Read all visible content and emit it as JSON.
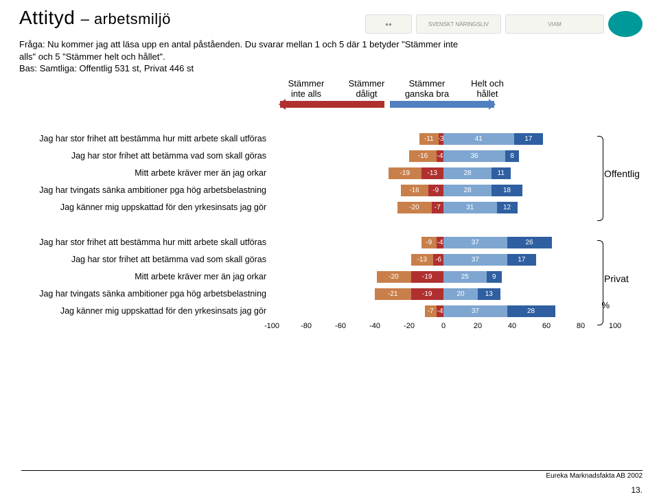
{
  "title_main": "Attityd",
  "title_sub": "– arbetsmiljö",
  "question_line1": "Fråga: Nu kommer jag att läsa upp en antal påståenden. Du svarar mellan 1 och 5 där 1 betyder \"Stämmer inte alls\" och 5 \"Stämmer helt och hållet\".",
  "base_line": "Bas: Samtliga: Offentlig 531 st, Privat 446 st",
  "legend": [
    "Stämmer inte alls",
    "Stämmer dåligt",
    "Stämmer ganska bra",
    "Helt och hållet"
  ],
  "axis": {
    "min": -100,
    "max": 100,
    "ticks": [
      -100,
      -80,
      -60,
      -40,
      -20,
      0,
      20,
      40,
      60,
      80,
      100
    ]
  },
  "colors": {
    "neg1": "#b03030",
    "neg2": "#c97f4a",
    "pos1": "#7ea6d0",
    "pos2": "#2f5fa0",
    "bg": "#ffffff",
    "text": "#000000"
  },
  "group_labels": {
    "g1": "Offentlig",
    "g2": "Privat"
  },
  "statements": [
    "Jag har stor frihet att bestämma hur mitt arbete skall utföras",
    "Jag har stor frihet att betämma vad som skall göras",
    "Mitt arbete kräver mer än jag orkar",
    "Jag har tvingats sänka ambitioner pga hög arbetsbelastning",
    "Jag känner mig uppskattad för den yrkesinsats jag gör"
  ],
  "data": {
    "offentlig": [
      {
        "neg1": -3,
        "neg2": -11,
        "pos1": 41,
        "pos2": 17
      },
      {
        "neg1": -4,
        "neg2": -16,
        "pos1": 36,
        "pos2": 8
      },
      {
        "neg1": -13,
        "neg2": -19,
        "pos1": 28,
        "pos2": 11
      },
      {
        "neg1": -9,
        "neg2": -16,
        "pos1": 28,
        "pos2": 18
      },
      {
        "neg1": -7,
        "neg2": -20,
        "pos1": 31,
        "pos2": 12
      }
    ],
    "privat": [
      {
        "neg1": -4,
        "neg2": -9,
        "pos1": 37,
        "pos2": 26
      },
      {
        "neg1": -6,
        "neg2": -13,
        "pos1": 37,
        "pos2": 17
      },
      {
        "neg1": -19,
        "neg2": -20,
        "pos1": 25,
        "pos2": 9
      },
      {
        "neg1": -19,
        "neg2": -21,
        "pos1": 20,
        "pos2": 13
      },
      {
        "neg1": -4,
        "neg2": -7,
        "pos1": 37,
        "pos2": 28
      }
    ]
  },
  "pct_label": "%",
  "footer": "Eureka Marknadsfakta AB 2002",
  "page_number": "13."
}
